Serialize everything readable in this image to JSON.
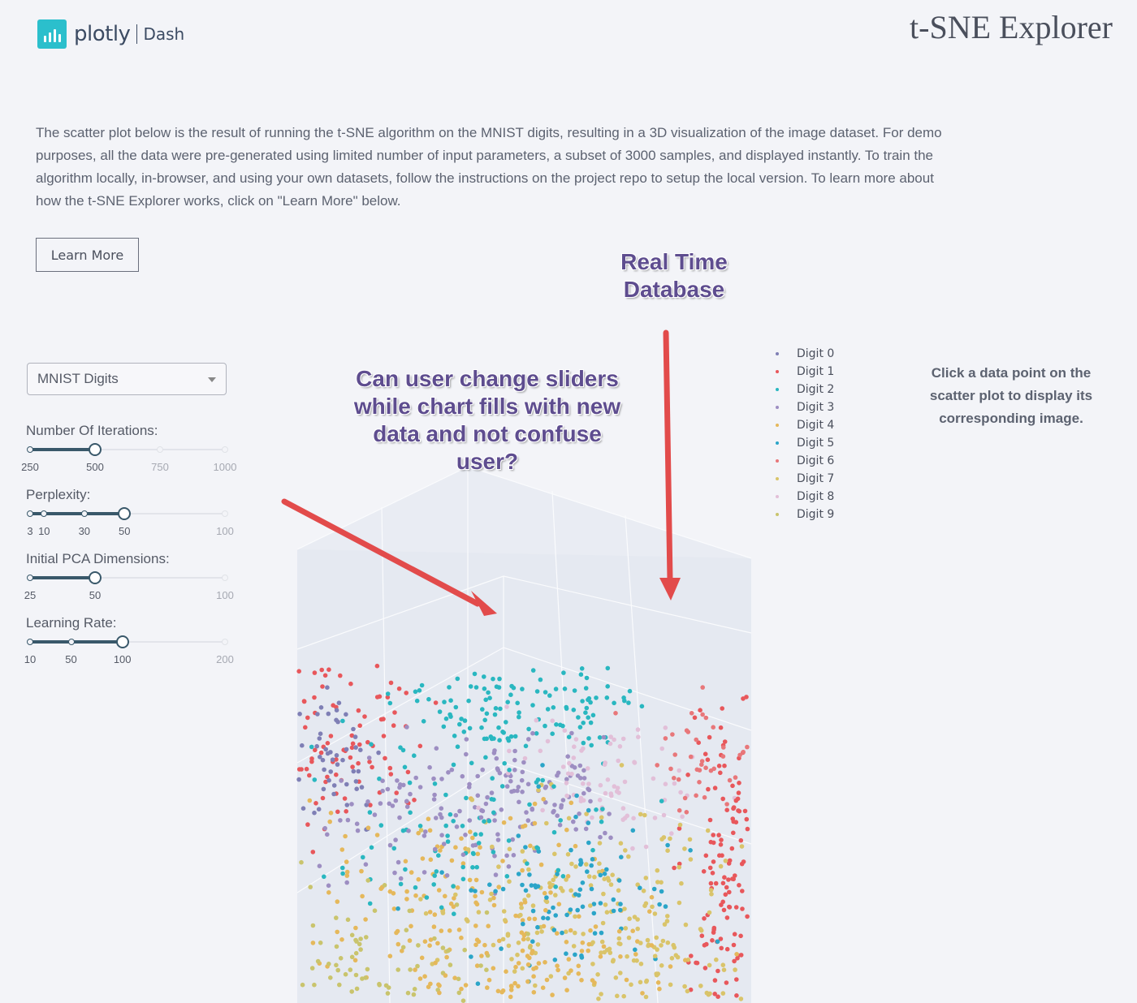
{
  "header": {
    "logo_word": "plotly",
    "logo_product": "Dash",
    "title": "t-SNE Explorer"
  },
  "description": "The scatter plot below is the result of running the t-SNE algorithm on the MNIST digits, resulting in a 3D visualization of the image dataset. For demo purposes, all the data were pre-generated using limited number of input parameters, a subset of 3000 samples, and displayed instantly. To train the algorithm locally, in-browser, and using your own datasets, follow the instructions on the project repo to setup the local version. To learn more about how the t-SNE Explorer works, click on \"Learn More\" below.",
  "learn_more_label": "Learn More",
  "dataset_dropdown": {
    "selected": "MNIST Digits"
  },
  "sliders": [
    {
      "label": "Number Of Iterations:",
      "min": 250,
      "max": 1000,
      "value": 500,
      "marks": [
        "250",
        "500",
        "750",
        "1000"
      ]
    },
    {
      "label": "Perplexity:",
      "min": 3,
      "max": 100,
      "value": 50,
      "marks": [
        "3",
        "10",
        "30",
        "50",
        "100"
      ]
    },
    {
      "label": "Initial PCA Dimensions:",
      "min": 25,
      "max": 100,
      "value": 50,
      "marks": [
        "25",
        "50",
        "100"
      ]
    },
    {
      "label": "Learning Rate:",
      "min": 10,
      "max": 200,
      "value": 100,
      "marks": [
        "10",
        "50",
        "100",
        "200"
      ]
    }
  ],
  "legend": [
    {
      "label": "Digit 0",
      "color": "#7f7fb5"
    },
    {
      "label": "Digit 1",
      "color": "#e8575b"
    },
    {
      "label": "Digit 2",
      "color": "#29b7c0"
    },
    {
      "label": "Digit 3",
      "color": "#9d8ec2"
    },
    {
      "label": "Digit 4",
      "color": "#e5b85b"
    },
    {
      "label": "Digit 5",
      "color": "#2ba5c8"
    },
    {
      "label": "Digit 6",
      "color": "#e8777a"
    },
    {
      "label": "Digit 7",
      "color": "#d9c46a"
    },
    {
      "label": "Digit 8",
      "color": "#e2bfd8"
    },
    {
      "label": "Digit 9",
      "color": "#c9c46d"
    }
  ],
  "info_text": "Click a data point on the scatter plot to display its corresponding image.",
  "annotations": {
    "top": "Real Time Database",
    "middle": "Can user change sliders while chart fills with new data and not confuse user?"
  }
}
